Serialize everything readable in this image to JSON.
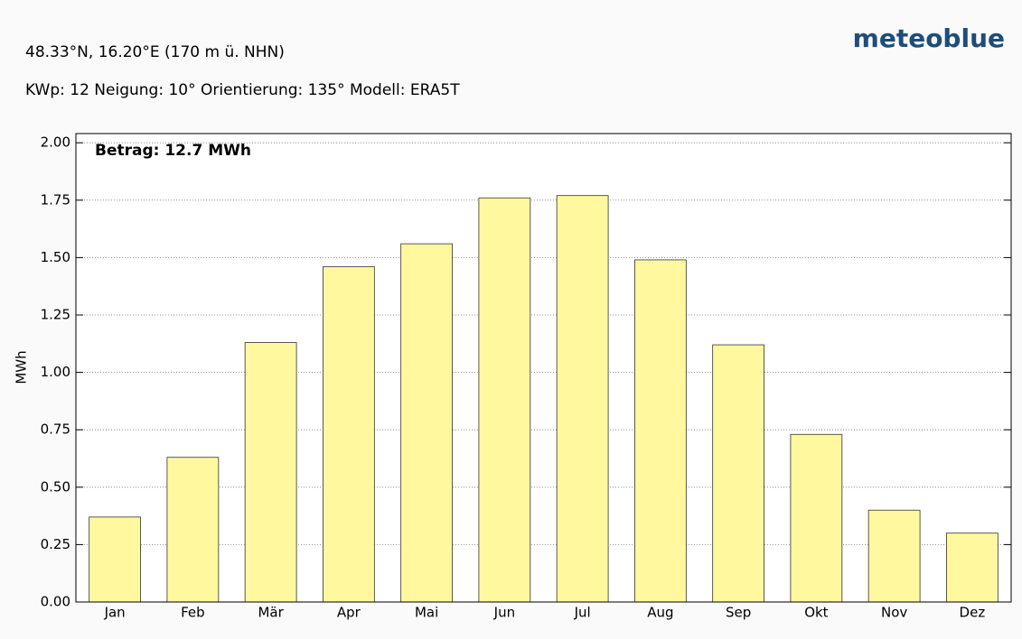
{
  "chart_data": {
    "type": "bar",
    "title": "48.33°N, 16.20°E (170 m ü. NHN)",
    "subtitle": "KWp: 12  Neigung: 10°  Orientierung: 135°  Modell: ERA5T",
    "logo": "meteoblue",
    "annotation": "Betrag: 12.7 MWh",
    "y_label": "MWh",
    "categories": [
      "Jan",
      "Feb",
      "Mär",
      "Apr",
      "Mai",
      "Jun",
      "Jul",
      "Aug",
      "Sep",
      "Okt",
      "Nov",
      "Dez"
    ],
    "values": [
      0.37,
      0.63,
      1.13,
      1.46,
      1.56,
      1.76,
      1.77,
      1.49,
      1.12,
      0.73,
      0.4,
      0.3
    ],
    "color": "#fff89e",
    "ylim": [
      0,
      2.04
    ],
    "yticks": [
      {
        "value": 0,
        "label": "0.00"
      },
      {
        "value": 0.25,
        "label": "0.25"
      },
      {
        "value": 0.5,
        "label": "0.50"
      },
      {
        "value": 0.75,
        "label": "0.75"
      },
      {
        "value": 1,
        "label": "1.00"
      },
      {
        "value": 1.25,
        "label": "1.25"
      },
      {
        "value": 1.5,
        "label": "1.50"
      },
      {
        "value": 1.75,
        "label": "1.75"
      },
      {
        "value": 2,
        "label": "2.00"
      }
    ],
    "grid": true
  }
}
